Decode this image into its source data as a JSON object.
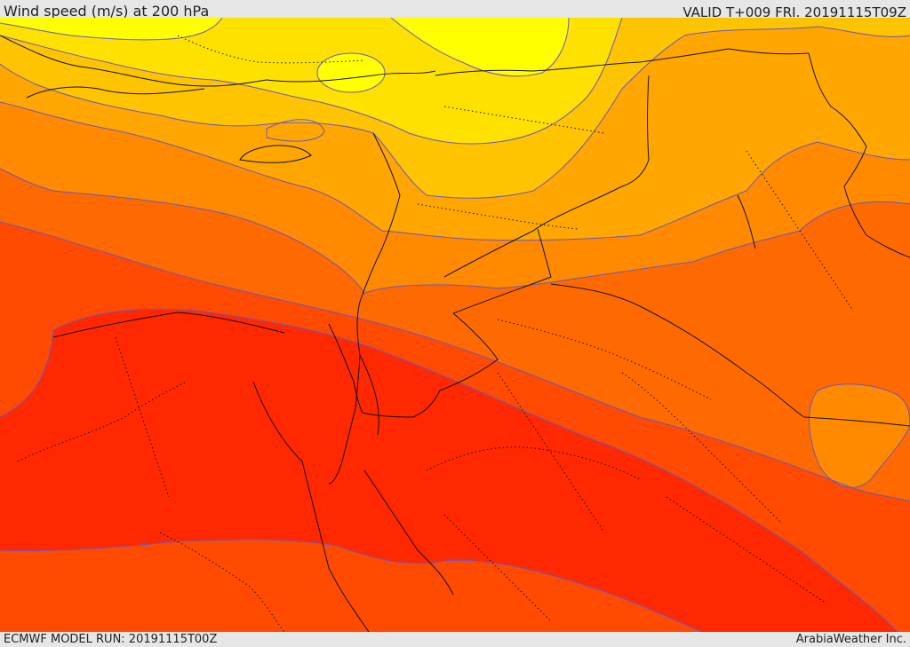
{
  "header": {
    "title": "Wind speed (m/s) at 200 hPa",
    "valid_time": "VALID T+009 FRI. 20191115T09Z"
  },
  "footer": {
    "model_run": "ECMWF MODEL RUN: 20191115T00Z",
    "credit": "ArabiaWeather Inc."
  },
  "map": {
    "field": "wind speed at 200 hPa",
    "contour_line_color": "#6a55c8",
    "border_color": "#111111",
    "fill_colors": {
      "band_1": "#ffff00",
      "band_2": "#ffe100",
      "band_3": "#ffc400",
      "band_4": "#ffa700",
      "band_5": "#ff8a00",
      "band_6": "#ff6a00",
      "band_7": "#ff4a00",
      "band_8": "#ff2800"
    }
  }
}
